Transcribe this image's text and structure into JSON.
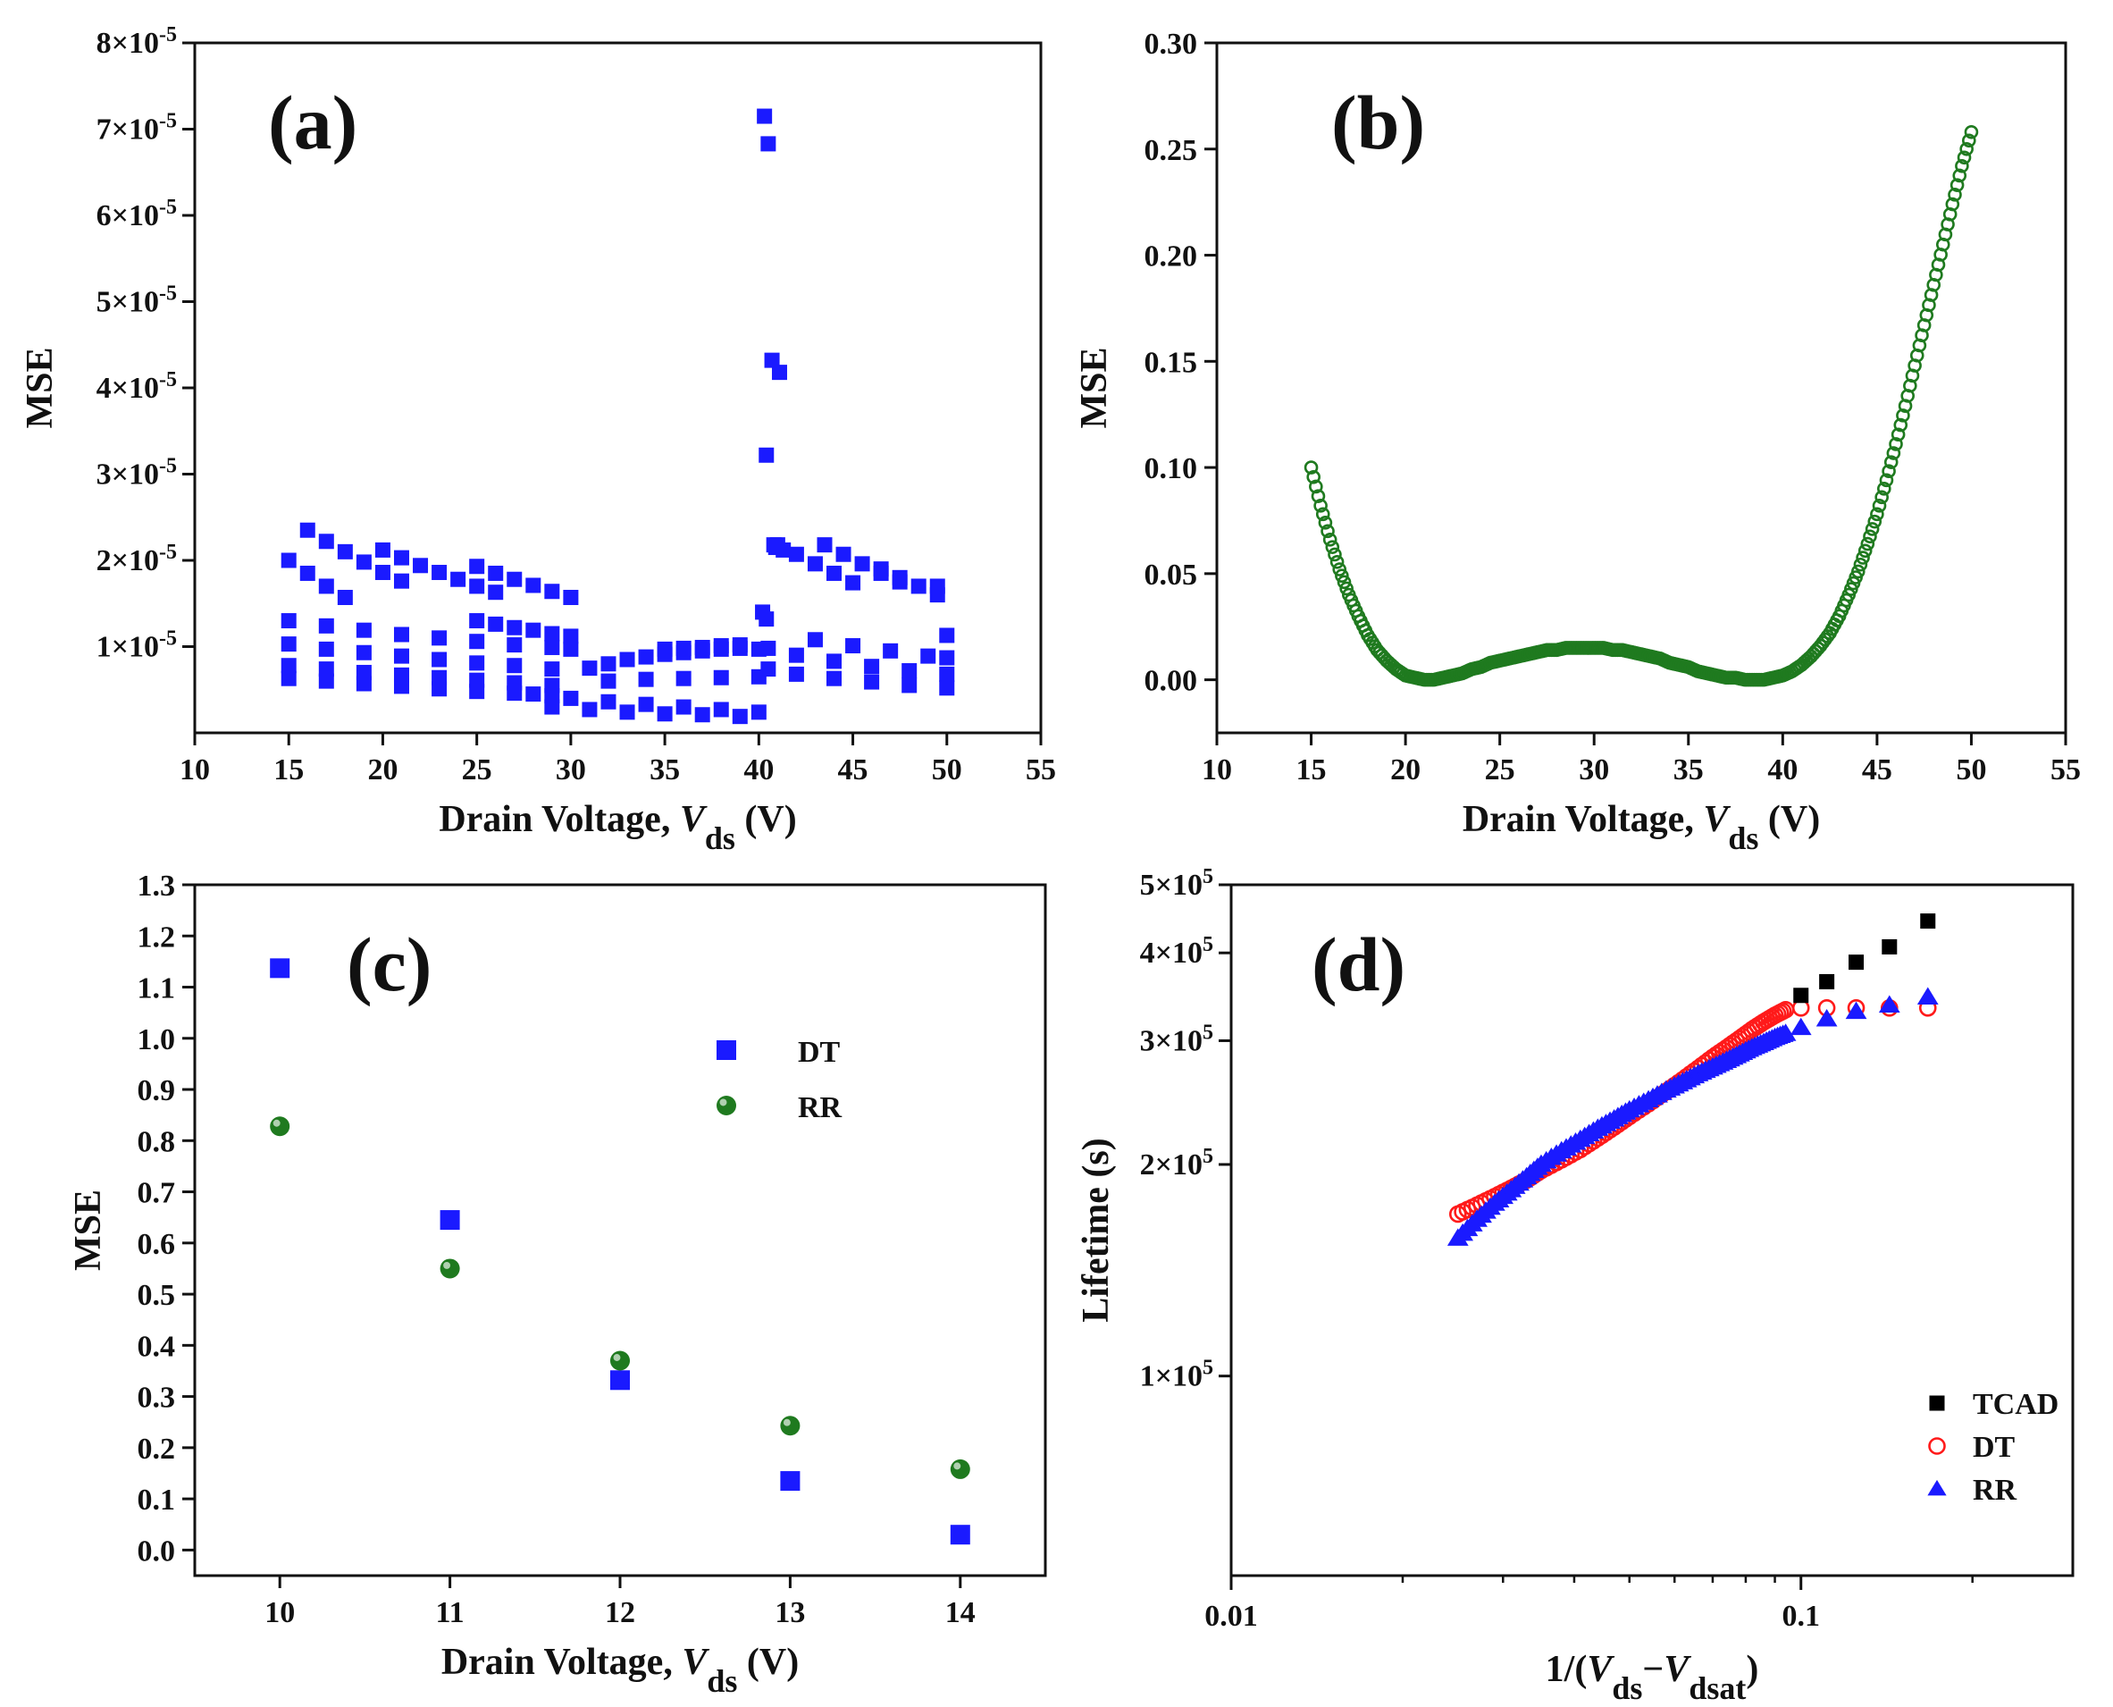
{
  "chart_data": [
    {
      "id": "a",
      "type": "scatter",
      "panel_label": "(a)",
      "xlabel": {
        "prefix": "Drain Voltage, ",
        "var": "V",
        "sub": "ds",
        "suffix": " (V)"
      },
      "ylabel": "MSE",
      "xlim": [
        10,
        55
      ],
      "ylim": [
        0.0,
        8e-05
      ],
      "x_ticks": [
        10,
        15,
        20,
        25,
        30,
        35,
        40,
        45,
        50,
        55
      ],
      "y_ticks": [
        {
          "value": 1e-05,
          "mant": "1",
          "exp": "-5"
        },
        {
          "value": 2e-05,
          "mant": "2",
          "exp": "-5"
        },
        {
          "value": 3e-05,
          "mant": "3",
          "exp": "-5"
        },
        {
          "value": 4e-05,
          "mant": "4",
          "exp": "-5"
        },
        {
          "value": 5e-05,
          "mant": "5",
          "exp": "-5"
        },
        {
          "value": 6e-05,
          "mant": "6",
          "exp": "-5"
        },
        {
          "value": 7e-05,
          "mant": "7",
          "exp": "-5"
        },
        {
          "value": 8e-05,
          "mant": "8",
          "exp": "-5"
        }
      ],
      "marker": "square",
      "color": "#1a1aff",
      "series": [
        {
          "x": [
            15,
            16,
            17,
            18
          ],
          "y": [
            2e-05,
            1.85e-05,
            1.7e-05,
            1.57e-05
          ]
        },
        {
          "x": [
            16,
            17,
            18,
            19,
            20,
            21
          ],
          "y": [
            2.35e-05,
            2.22e-05,
            2.1e-05,
            1.98e-05,
            1.86e-05,
            1.76e-05
          ]
        },
        {
          "x": [
            20,
            21,
            22,
            23,
            24,
            25,
            26
          ],
          "y": [
            2.12e-05,
            2.03e-05,
            1.94e-05,
            1.86e-05,
            1.78e-05,
            1.7e-05,
            1.63e-05
          ]
        },
        {
          "x": [
            25,
            26,
            27,
            28,
            29,
            30
          ],
          "y": [
            1.93e-05,
            1.85e-05,
            1.78e-05,
            1.71e-05,
            1.64e-05,
            1.57e-05
          ]
        },
        {
          "x": [
            15,
            17,
            19,
            21,
            23,
            25,
            27,
            29,
            30
          ],
          "y": [
            1.3e-05,
            1.24e-05,
            1.19e-05,
            1.14e-05,
            1.1e-05,
            1.06e-05,
            1.02e-05,
            9.9e-06,
            9.7e-06
          ]
        },
        {
          "x": [
            15,
            17,
            19,
            21,
            23,
            25,
            27,
            29
          ],
          "y": [
            1.03e-05,
            9.7e-06,
            9.3e-06,
            8.9e-06,
            8.5e-06,
            8.1e-06,
            7.8e-06,
            7.4e-06
          ]
        },
        {
          "x": [
            15,
            17,
            19,
            21,
            23,
            25,
            27,
            29
          ],
          "y": [
            7.8e-06,
            7.4e-06,
            7e-06,
            6.7e-06,
            6.4e-06,
            6.1e-06,
            5.8e-06,
            5.5e-06
          ]
        },
        {
          "x": [
            15,
            17,
            19,
            21,
            23,
            25,
            27,
            29
          ],
          "y": [
            6.3e-06,
            6e-06,
            5.7e-06,
            5.4e-06,
            5.1e-06,
            4.8e-06,
            4.6e-06,
            4.3e-06
          ]
        },
        {
          "x": [
            25,
            26,
            27,
            28,
            29,
            30
          ],
          "y": [
            1.3e-05,
            1.26e-05,
            1.22e-05,
            1.19e-05,
            1.15e-05,
            1.12e-05
          ]
        },
        {
          "x": [
            28,
            30,
            32,
            34,
            36,
            38,
            40
          ],
          "y": [
            4.5e-06,
            4e-06,
            3.6e-06,
            3.3e-06,
            3e-06,
            2.7e-06,
            2.4e-06
          ]
        },
        {
          "x": [
            29,
            31,
            33,
            35,
            37,
            39
          ],
          "y": [
            3e-06,
            2.7e-06,
            2.4e-06,
            2.2e-06,
            2.1e-06,
            1.9e-06
          ]
        },
        {
          "x": [
            31,
            32,
            33,
            34,
            35,
            36,
            37,
            38,
            39,
            40
          ],
          "y": [
            7.5e-06,
            8e-06,
            8.5e-06,
            8.8e-06,
            9.1e-06,
            9.3e-06,
            9.5e-06,
            9.7e-06,
            9.8e-06,
            9.7e-06
          ]
        },
        {
          "x": [
            32,
            34,
            36,
            38,
            40
          ],
          "y": [
            6e-06,
            6.2e-06,
            6.3e-06,
            6.4e-06,
            6.5e-06
          ]
        },
        {
          "x": [
            35,
            36,
            37,
            38,
            39
          ],
          "y": [
            9.7e-06,
            9.8e-06,
            9.9e-06,
            1.01e-05,
            1.02e-05
          ]
        },
        {
          "x": [
            40.3,
            40.5,
            40.7,
            41.1,
            40.4,
            40.8,
            40.9,
            41.3,
            40.2,
            40.4
          ],
          "y": [
            7.15e-05,
            6.83e-05,
            4.32e-05,
            4.18e-05,
            3.22e-05,
            2.18e-05,
            2.15e-05,
            2.12e-05,
            1.4e-05,
            1.32e-05
          ]
        },
        {
          "x": [
            41,
            42,
            43,
            44,
            45
          ],
          "y": [
            2.18e-05,
            2.07e-05,
            1.96e-05,
            1.85e-05,
            1.74e-05
          ]
        },
        {
          "x": [
            43.5,
            44.5,
            45.5,
            46.5,
            47.5
          ],
          "y": [
            2.18e-05,
            2.07e-05,
            1.96e-05,
            1.85e-05,
            1.75e-05
          ]
        },
        {
          "x": [
            46.5,
            47.5,
            48.5,
            49.5
          ],
          "y": [
            1.9e-05,
            1.8e-05,
            1.7e-05,
            1.6e-05
          ]
        },
        {
          "x": [
            40.5,
            42,
            44,
            46,
            48,
            50
          ],
          "y": [
            9.8e-06,
            9e-06,
            8.3e-06,
            7.7e-06,
            7.2e-06,
            6.8e-06
          ]
        },
        {
          "x": [
            43,
            45,
            47,
            49,
            50
          ],
          "y": [
            1.08e-05,
            1.01e-05,
            9.5e-06,
            8.9e-06,
            8.7e-06
          ]
        },
        {
          "x": [
            40.5,
            42,
            44,
            46,
            48,
            50
          ],
          "y": [
            7.4e-06,
            6.8e-06,
            6.3e-06,
            5.9e-06,
            5.5e-06,
            5.2e-06
          ]
        },
        {
          "x": [
            49.5,
            50
          ],
          "y": [
            1.7e-05,
            1.13e-05
          ]
        }
      ]
    },
    {
      "id": "b",
      "type": "scatter",
      "panel_label": "(b)",
      "xlabel": {
        "prefix": "Drain Voltage, ",
        "var": "V",
        "sub": "ds",
        "suffix": " (V)"
      },
      "ylabel": "MSE",
      "xlim": [
        10,
        55
      ],
      "ylim": [
        -0.025,
        0.3
      ],
      "x_ticks": [
        10,
        15,
        20,
        25,
        30,
        35,
        40,
        45,
        50,
        55
      ],
      "y_ticks": [
        "0.00",
        "0.05",
        "0.10",
        "0.15",
        "0.20",
        "0.25",
        "0.30"
      ],
      "marker": "open-circle",
      "color": "#1f7a1f",
      "x": [
        15,
        15.5,
        16,
        16.5,
        17,
        17.5,
        18,
        18.5,
        19,
        19.5,
        20,
        20.5,
        21,
        21.5,
        22,
        22.5,
        23,
        23.5,
        24,
        24.5,
        25,
        25.5,
        26,
        26.5,
        27,
        27.5,
        28,
        28.5,
        29,
        29.5,
        30,
        30.5,
        31,
        31.5,
        32,
        32.5,
        33,
        33.5,
        34,
        34.5,
        35,
        35.5,
        36,
        36.5,
        37,
        37.5,
        38,
        38.5,
        39,
        39.5,
        40,
        40.5,
        41,
        41.5,
        42,
        42.5,
        43,
        43.5,
        44,
        44.5,
        45,
        45.5,
        46,
        46.5,
        47,
        47.5,
        48,
        48.5,
        49,
        49.5,
        50
      ],
      "y": [
        0.1,
        0.082,
        0.066,
        0.052,
        0.04,
        0.03,
        0.021,
        0.014,
        0.009,
        0.005,
        0.002,
        0.001,
        0.0,
        0.0,
        0.001,
        0.002,
        0.003,
        0.005,
        0.006,
        0.008,
        0.009,
        0.01,
        0.011,
        0.012,
        0.013,
        0.014,
        0.014,
        0.015,
        0.015,
        0.015,
        0.015,
        0.015,
        0.014,
        0.014,
        0.013,
        0.012,
        0.011,
        0.01,
        0.008,
        0.007,
        0.006,
        0.004,
        0.003,
        0.002,
        0.001,
        0.001,
        0.0,
        0.0,
        0.0,
        0.001,
        0.002,
        0.004,
        0.007,
        0.011,
        0.016,
        0.022,
        0.03,
        0.04,
        0.051,
        0.064,
        0.078,
        0.094,
        0.111,
        0.129,
        0.148,
        0.167,
        0.186,
        0.205,
        0.224,
        0.242,
        0.258
      ]
    },
    {
      "id": "c",
      "type": "scatter",
      "panel_label": "(c)",
      "xlabel": {
        "prefix": "Drain Voltage, ",
        "var": "V",
        "sub": "ds",
        "suffix": " (V)"
      },
      "ylabel": "MSE",
      "xlim": [
        9.5,
        14.5
      ],
      "ylim": [
        -0.05,
        1.3
      ],
      "x_ticks": [
        "10",
        "11",
        "12",
        "13",
        "14"
      ],
      "y_ticks": [
        "0.0",
        "0.1",
        "0.2",
        "0.3",
        "0.4",
        "0.5",
        "0.6",
        "0.7",
        "0.8",
        "0.9",
        "1.0",
        "1.1",
        "1.2",
        "1.3"
      ],
      "categories": [
        10,
        11,
        12,
        13,
        14
      ],
      "series": [
        {
          "name": "DT",
          "marker": "square",
          "color": "#1a1aff",
          "values": [
            1.137,
            0.645,
            0.332,
            0.135,
            0.03
          ]
        },
        {
          "name": "RR",
          "marker": "ball",
          "color": "#1f7a1f",
          "values": [
            0.828,
            0.55,
            0.37,
            0.243,
            0.158
          ]
        }
      ],
      "legend": "upper-right"
    },
    {
      "id": "d",
      "type": "scatter",
      "panel_label": "(d)",
      "xlabel": {
        "prefix": "1/(",
        "var1": "V",
        "sub1": "ds",
        "dash": "−",
        "var2": "V",
        "sub2": "dsat",
        "suffix": ")"
      },
      "ylabel": "Lifetime (s)",
      "xscale": "log",
      "yscale": "log",
      "xlim": [
        0.01,
        0.3
      ],
      "ylim": [
        52000,
        500000
      ],
      "x_ticks": [
        "0.01",
        "0.1"
      ],
      "y_ticks": [
        {
          "value": 100000,
          "mant": "1",
          "exp": "5"
        },
        {
          "value": 200000,
          "mant": "2",
          "exp": "5"
        },
        {
          "value": 300000,
          "mant": "3",
          "exp": "5"
        },
        {
          "value": 400000,
          "mant": "4",
          "exp": "5"
        },
        {
          "value": 500000,
          "mant": "5",
          "exp": "5"
        }
      ],
      "series": [
        {
          "name": "TCAD",
          "marker": "square",
          "color": "#000000",
          "x": [
            0.1,
            0.111,
            0.125,
            0.143,
            0.167
          ],
          "y": [
            348000,
            364000,
            388000,
            408000,
            444000
          ]
        },
        {
          "name": "DT",
          "marker": "open-circle",
          "color": "#ff1a1a",
          "x": [
            0.025,
            0.027,
            0.029,
            0.031,
            0.033,
            0.035,
            0.038,
            0.041,
            0.044,
            0.047,
            0.05,
            0.054,
            0.058,
            0.062,
            0.066,
            0.07,
            0.074,
            0.078,
            0.082,
            0.086,
            0.09,
            0.094,
            0.1,
            0.111,
            0.125,
            0.143,
            0.167
          ],
          "y": [
            170000,
            175000,
            180000,
            185000,
            190000,
            196000,
            203000,
            210000,
            218000,
            226000,
            234000,
            244000,
            254000,
            264000,
            274000,
            284000,
            293000,
            302000,
            311000,
            319000,
            326000,
            332000,
            334000,
            334000,
            334000,
            334000,
            334000
          ]
        },
        {
          "name": "RR",
          "marker": "triangle",
          "color": "#1a1aff",
          "x": [
            0.025,
            0.027,
            0.029,
            0.031,
            0.033,
            0.035,
            0.038,
            0.041,
            0.044,
            0.047,
            0.05,
            0.054,
            0.058,
            0.062,
            0.066,
            0.07,
            0.074,
            0.078,
            0.082,
            0.086,
            0.09,
            0.094,
            0.1,
            0.111,
            0.125,
            0.143,
            0.167
          ],
          "y": [
            157000,
            167000,
            176000,
            184000,
            192000,
            200000,
            209000,
            217000,
            225000,
            232000,
            239000,
            247000,
            255000,
            262000,
            269000,
            275000,
            281000,
            287000,
            293000,
            298000,
            303000,
            307000,
            313000,
            322000,
            330000,
            337000,
            346000
          ]
        }
      ],
      "legend": "lower-right"
    }
  ]
}
